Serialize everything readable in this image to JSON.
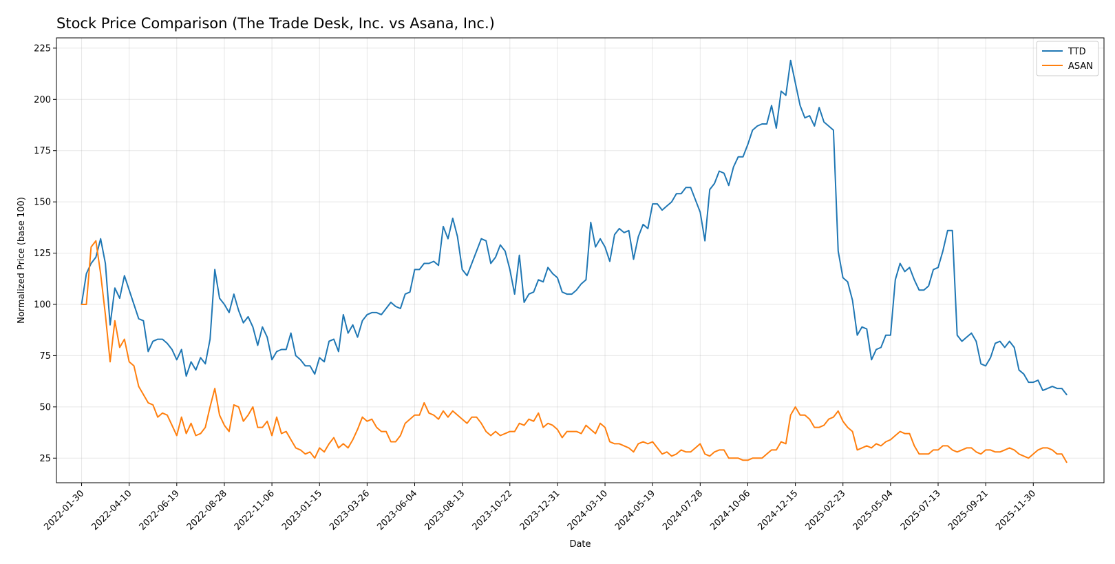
{
  "chart_data": {
    "type": "line",
    "title": "Stock Price Comparison (The Trade Desk, Inc. vs Asana, Inc.)",
    "xlabel": "Date",
    "ylabel": "Normalized Price (base 100)",
    "x_start": "2022-01-30",
    "x_step_days": 7,
    "x_tick_step_days": 70,
    "x_tick_labels": [
      "2022-01-30",
      "2022-04-10",
      "2022-06-19",
      "2022-08-28",
      "2022-11-06",
      "2023-01-15",
      "2023-03-26",
      "2023-06-04",
      "2023-08-13",
      "2023-10-22",
      "2023-12-31",
      "2024-03-10",
      "2024-05-19",
      "2024-07-28",
      "2024-10-06",
      "2024-12-15",
      "2025-02-23",
      "2025-05-04",
      "2025-07-13",
      "2025-09-21",
      "2025-11-30"
    ],
    "xlim": [
      "2021-12-24",
      "2026-03-14"
    ],
    "ylim": [
      13,
      230
    ],
    "y_ticks": [
      25,
      50,
      75,
      100,
      125,
      150,
      175,
      200,
      225
    ],
    "grid": true,
    "legend": "top-right",
    "series": [
      {
        "name": "TTD",
        "color": "#1f77b4",
        "values": [
          100,
          115,
          120,
          123,
          132,
          120,
          90,
          108,
          103,
          114,
          107,
          100,
          93,
          92,
          77,
          82,
          83,
          83,
          81,
          78,
          73,
          78,
          65,
          72,
          68,
          74,
          71,
          83,
          117,
          103,
          100,
          96,
          105,
          97,
          91,
          94,
          89,
          80,
          89,
          84,
          73,
          77,
          78,
          78,
          86,
          75,
          73,
          70,
          70,
          66,
          74,
          72,
          82,
          83,
          77,
          95,
          86,
          90,
          84,
          92,
          95,
          96,
          96,
          95,
          98,
          101,
          99,
          98,
          105,
          106,
          117,
          117,
          120,
          120,
          121,
          119,
          138,
          132,
          142,
          133,
          117,
          114,
          120,
          126,
          132,
          131,
          120,
          123,
          129,
          126,
          117,
          105,
          124,
          101,
          105,
          106,
          112,
          111,
          118,
          115,
          113,
          106,
          105,
          105,
          107,
          110,
          112,
          140,
          128,
          132,
          128,
          121,
          134,
          137,
          135,
          136,
          122,
          133,
          139,
          137,
          149,
          149,
          146,
          148,
          150,
          154,
          154,
          157,
          157,
          151,
          145,
          131,
          156,
          159,
          165,
          164,
          158,
          167,
          172,
          172,
          178,
          185,
          187,
          188,
          188,
          197,
          186,
          204,
          202,
          219,
          208,
          197,
          191,
          192,
          187,
          196,
          189,
          187,
          185,
          126,
          113,
          111,
          102,
          85,
          89,
          88,
          73,
          78,
          79,
          85,
          85,
          112,
          120,
          116,
          118,
          112,
          107,
          107,
          109,
          117,
          118,
          126,
          136,
          136,
          85,
          82,
          84,
          86,
          82,
          71,
          70,
          74,
          81,
          82,
          79,
          82,
          79,
          68,
          66,
          62,
          62,
          63,
          58,
          59,
          60,
          59,
          59,
          56
        ]
      },
      {
        "name": "ASAN",
        "color": "#ff7f0e",
        "values": [
          100,
          100,
          128,
          131,
          115,
          95,
          72,
          92,
          79,
          83,
          72,
          70,
          60,
          56,
          52,
          51,
          45,
          47,
          46,
          41,
          36,
          45,
          37,
          42,
          36,
          37,
          40,
          50,
          59,
          46,
          41,
          38,
          51,
          50,
          43,
          46,
          50,
          40,
          40,
          43,
          36,
          45,
          37,
          38,
          34,
          30,
          29,
          27,
          28,
          25,
          30,
          28,
          32,
          35,
          30,
          32,
          30,
          34,
          39,
          45,
          43,
          44,
          40,
          38,
          38,
          33,
          33,
          36,
          42,
          44,
          46,
          46,
          52,
          47,
          46,
          44,
          48,
          45,
          48,
          46,
          44,
          42,
          45,
          45,
          42,
          38,
          36,
          38,
          36,
          37,
          38,
          38,
          42,
          41,
          44,
          43,
          47,
          40,
          42,
          41,
          39,
          35,
          38,
          38,
          38,
          37,
          41,
          39,
          37,
          42,
          40,
          33,
          32,
          32,
          31,
          30,
          28,
          32,
          33,
          32,
          33,
          30,
          27,
          28,
          26,
          27,
          29,
          28,
          28,
          30,
          32,
          27,
          26,
          28,
          29,
          29,
          25,
          25,
          25,
          24,
          24,
          25,
          25,
          25,
          27,
          29,
          29,
          33,
          32,
          46,
          50,
          46,
          46,
          44,
          40,
          40,
          41,
          44,
          45,
          48,
          43,
          40,
          38,
          29,
          30,
          31,
          30,
          32,
          31,
          33,
          34,
          36,
          38,
          37,
          37,
          31,
          27,
          27,
          27,
          29,
          29,
          31,
          31,
          29,
          28,
          29,
          30,
          30,
          28,
          27,
          29,
          29,
          28,
          28,
          29,
          30,
          29,
          27,
          26,
          25,
          27,
          29,
          30,
          30,
          29,
          27,
          27,
          23
        ]
      }
    ]
  }
}
